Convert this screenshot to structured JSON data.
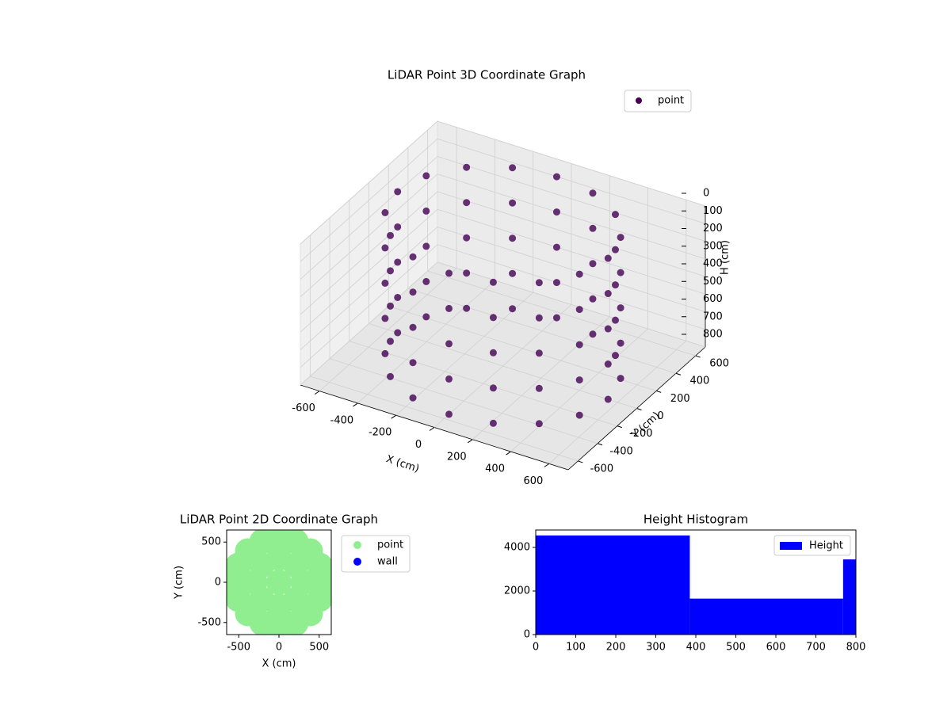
{
  "chart_data": [
    {
      "type": "scatter3d",
      "title": "LiDAR Point 3D Coordinate Graph",
      "xlabel": "X (cm)",
      "ylabel": "Y (cm)",
      "zlabel": "H (cm)",
      "legend": "upper right",
      "series": [
        {
          "name": "point",
          "color": "#440154",
          "x": [
            550,
            508,
            389,
            210,
            0,
            -210,
            -389,
            -508,
            -550,
            -508,
            -389,
            -210,
            0,
            210,
            389,
            508,
            550,
            508,
            389,
            210,
            0,
            -210,
            -389,
            -508,
            -550,
            -508,
            -389,
            -210,
            0,
            210,
            389,
            508,
            550,
            508,
            389,
            210,
            0,
            -210,
            -389,
            -508,
            -550,
            -508,
            -389,
            -210,
            0,
            210,
            389,
            508,
            550,
            508,
            389,
            210,
            0,
            -210,
            -389,
            -508,
            -550,
            -508,
            -389,
            -210,
            0,
            210,
            389,
            508,
            550,
            508,
            389,
            210,
            0,
            -210,
            -389,
            -508,
            -550,
            -508,
            -389,
            -210,
            0,
            210,
            389,
            508
          ],
          "y": [
            0,
            210,
            389,
            508,
            550,
            508,
            389,
            210,
            0,
            -210,
            -389,
            -508,
            -550,
            -508,
            -389,
            -210,
            0,
            210,
            389,
            508,
            550,
            508,
            389,
            210,
            0,
            -210,
            -389,
            -508,
            -550,
            -508,
            -389,
            -210,
            0,
            210,
            389,
            508,
            550,
            508,
            389,
            210,
            0,
            -210,
            -389,
            -508,
            -550,
            -508,
            -389,
            -210,
            0,
            210,
            389,
            508,
            550,
            508,
            389,
            210,
            0,
            -210,
            -389,
            -508,
            -550,
            -508,
            -389,
            -210,
            0,
            210,
            389,
            508,
            550,
            508,
            389,
            210,
            0,
            -210,
            -389,
            -508,
            -550,
            -508,
            -389,
            -210
          ],
          "z": [
            0,
            0,
            0,
            0,
            0,
            0,
            0,
            0,
            0,
            0,
            0,
            0,
            0,
            0,
            0,
            0,
            200,
            200,
            200,
            200,
            200,
            200,
            200,
            200,
            200,
            200,
            200,
            200,
            200,
            200,
            200,
            200,
            400,
            400,
            400,
            400,
            400,
            400,
            400,
            400,
            400,
            400,
            400,
            400,
            400,
            400,
            400,
            400,
            600,
            600,
            600,
            600,
            600,
            600,
            600,
            600,
            600,
            600,
            600,
            600,
            600,
            600,
            600,
            600,
            800,
            800,
            800,
            800,
            800,
            800,
            800,
            800,
            800,
            800,
            800,
            800,
            800,
            800,
            800,
            800
          ]
        }
      ],
      "xlim": [
        -700,
        700
      ],
      "ylim": [
        -700,
        700
      ],
      "zlim": [
        800,
        0
      ],
      "xticks": [
        -600,
        -400,
        -200,
        0,
        200,
        400,
        600
      ],
      "yticks": [
        -600,
        -400,
        -200,
        0,
        200,
        400,
        600
      ],
      "zticks": [
        0,
        100,
        200,
        300,
        400,
        500,
        600,
        700,
        800
      ],
      "grid": true
    },
    {
      "type": "scatter",
      "title": "LiDAR Point 2D Coordinate Graph",
      "xlabel": "X (cm)",
      "ylabel": "Y (cm)",
      "legend": "outside right",
      "series": [
        {
          "name": "point",
          "color": "#90ee90",
          "x": [
            550,
            508,
            389,
            210,
            0,
            -210,
            -389,
            -508,
            -550,
            -508,
            -389,
            -210,
            0,
            210,
            389,
            508,
            300,
            212,
            0,
            -212,
            -300,
            -212,
            0,
            212,
            0
          ],
          "y": [
            0,
            210,
            389,
            508,
            550,
            508,
            389,
            210,
            0,
            -210,
            -389,
            -508,
            -550,
            -508,
            -389,
            -210,
            0,
            212,
            300,
            212,
            0,
            -212,
            -300,
            -212,
            0
          ]
        },
        {
          "name": "wall",
          "color": "#0000ff",
          "x": [],
          "y": []
        }
      ],
      "xlim": [
        -650,
        650
      ],
      "ylim": [
        -650,
        650
      ],
      "xticks": [
        -500,
        0,
        500
      ],
      "yticks": [
        -500,
        0,
        500
      ]
    },
    {
      "type": "histogram",
      "title": "Height Histogram",
      "legend": "upper right",
      "series": [
        {
          "name": "Height",
          "color": "#0000ff",
          "bins": [
            0,
            385,
            768,
            800
          ],
          "counts": [
            4550,
            1650,
            3450
          ]
        }
      ],
      "xlim": [
        0,
        800
      ],
      "ylim": [
        0,
        4800
      ],
      "xticks": [
        0,
        100,
        200,
        300,
        400,
        500,
        600,
        700,
        800
      ],
      "yticks": [
        0,
        2000,
        4000
      ]
    }
  ]
}
